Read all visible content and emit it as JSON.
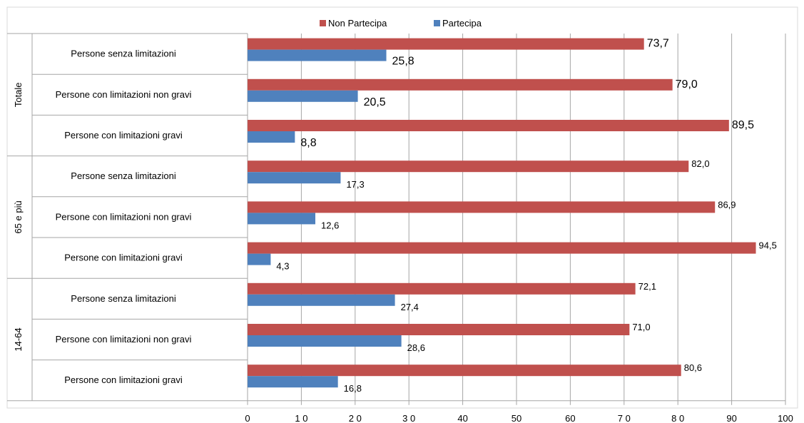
{
  "chart_data": {
    "type": "bar",
    "orientation": "horizontal",
    "groups": [
      {
        "label": "Totale",
        "rows": [
          {
            "label": "Persone senza limitazioni",
            "values": [
              73.7,
              25.8
            ],
            "labels": [
              "73,7",
              "25,8"
            ]
          },
          {
            "label": "Persone con limitazioni non gravi",
            "values": [
              79.0,
              20.5
            ],
            "labels": [
              "79,0",
              "20,5"
            ]
          },
          {
            "label": "Persone con limitazioni gravi",
            "values": [
              89.5,
              8.8
            ],
            "labels": [
              "89,5",
              "8,8"
            ]
          }
        ]
      },
      {
        "label": "65 e più",
        "rows": [
          {
            "label": "Persone senza limitazioni",
            "values": [
              82.0,
              17.3
            ],
            "labels": [
              "82,0",
              "17,3"
            ]
          },
          {
            "label": "Persone con limitazioni non gravi",
            "values": [
              86.9,
              12.6
            ],
            "labels": [
              "86,9",
              "12,6"
            ]
          },
          {
            "label": "Persone con limitazioni gravi",
            "values": [
              94.5,
              4.3
            ],
            "labels": [
              "94,5",
              "4,3"
            ]
          }
        ]
      },
      {
        "label": "14-64",
        "rows": [
          {
            "label": "Persone senza limitazioni",
            "values": [
              72.1,
              27.4
            ],
            "labels": [
              "72,1",
              "27,4"
            ]
          },
          {
            "label": "Persone con limitazioni non gravi",
            "values": [
              71.0,
              28.6
            ],
            "labels": [
              "71,0",
              "28,6"
            ]
          },
          {
            "label": "Persone con limitazioni gravi",
            "values": [
              80.6,
              16.8
            ],
            "labels": [
              "80,6",
              "16,8"
            ]
          }
        ]
      }
    ],
    "series": [
      {
        "name": "Non Partecipa",
        "color": "#c0504d"
      },
      {
        "name": "Partecipa",
        "color": "#4f81bd"
      }
    ],
    "xlim": [
      0,
      100
    ],
    "xticks": [
      {
        "value": 0,
        "label": "0"
      },
      {
        "value": 10,
        "label": "1 0"
      },
      {
        "value": 20,
        "label": "2 0"
      },
      {
        "value": 30,
        "label": "3 0"
      },
      {
        "value": 40,
        "label": "40"
      },
      {
        "value": 50,
        "label": "50"
      },
      {
        "value": 60,
        "label": "60"
      },
      {
        "value": 70,
        "label": "7 0"
      },
      {
        "value": 80,
        "label": "8 0"
      },
      {
        "value": 90,
        "label": "90"
      },
      {
        "value": 100,
        "label": "100"
      }
    ],
    "grid": true,
    "legend_position": "top-center"
  }
}
